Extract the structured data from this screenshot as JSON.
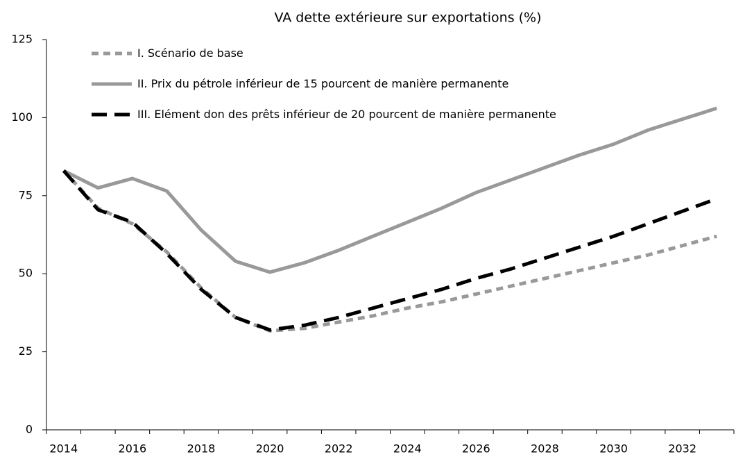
{
  "chart_data": {
    "type": "line",
    "title": "VA dette extérieure sur exportations (%)",
    "categories": [
      "2014",
      null,
      "2016",
      null,
      "2018",
      null,
      "2020",
      null,
      "2022",
      null,
      "2024",
      null,
      "2026",
      null,
      "2028",
      null,
      "2030",
      null,
      "2032",
      null
    ],
    "series": [
      {
        "name": "I. Scénario de base",
        "color": "#999999",
        "dash": "dashed",
        "values": [
          83,
          71,
          66,
          57,
          45.5,
          36,
          31.7,
          32.5,
          34.5,
          36.5,
          39,
          41,
          43.5,
          46,
          48.5,
          51,
          53.5,
          56,
          59,
          62
        ]
      },
      {
        "name": "II. Prix du pétrole inférieur de 15 pourcent de manière permanente",
        "color": "#999999",
        "dash": "solid",
        "values": [
          83,
          77.5,
          80.5,
          76.5,
          64,
          54,
          50.5,
          53.5,
          57.5,
          62,
          66.5,
          71,
          76,
          80,
          84,
          88,
          91.5,
          96,
          99.5,
          103
        ]
      },
      {
        "name": "III. Elément don des prêts inférieur de 20 pourcent de manière permanente",
        "color": "#000000",
        "dash": "longdash",
        "values": [
          83,
          70.5,
          66.5,
          56.5,
          45,
          36,
          32,
          33.5,
          36,
          39,
          42,
          45,
          48.5,
          51.5,
          55,
          58.5,
          62,
          66,
          70,
          74
        ]
      }
    ],
    "ylim": [
      0,
      125
    ],
    "yticks": [
      0,
      25,
      50,
      75,
      100,
      125
    ],
    "legend": "upper left"
  }
}
